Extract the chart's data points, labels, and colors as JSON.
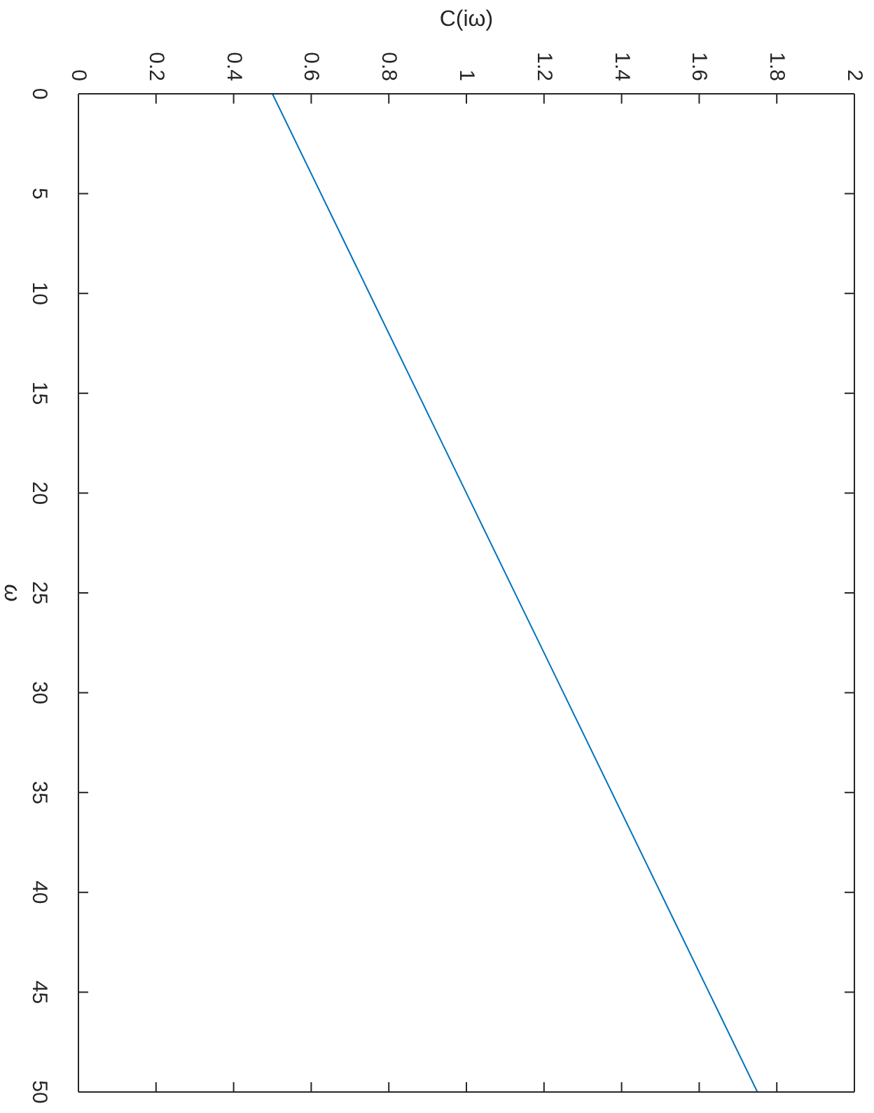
{
  "chart_data": {
    "type": "line",
    "xlabel": "C(iω)",
    "ylabel": "ω",
    "x": [
      0.5,
      0.75,
      1.0,
      1.25,
      1.5,
      1.75
    ],
    "series": [
      {
        "color": "#0072bd",
        "values": [
          0,
          10,
          20,
          30,
          40,
          50
        ]
      }
    ],
    "xlim": [
      0,
      2
    ],
    "xticks": [
      0,
      0.2,
      0.4,
      0.6,
      0.8,
      1,
      1.2,
      1.4,
      1.6,
      1.8,
      2
    ],
    "ylim": [
      50,
      0
    ],
    "yticks": [
      0,
      5,
      10,
      15,
      20,
      25,
      30,
      35,
      40,
      45,
      50
    ],
    "grid": false,
    "legend": false,
    "marker": "none",
    "line_style": "solid"
  }
}
